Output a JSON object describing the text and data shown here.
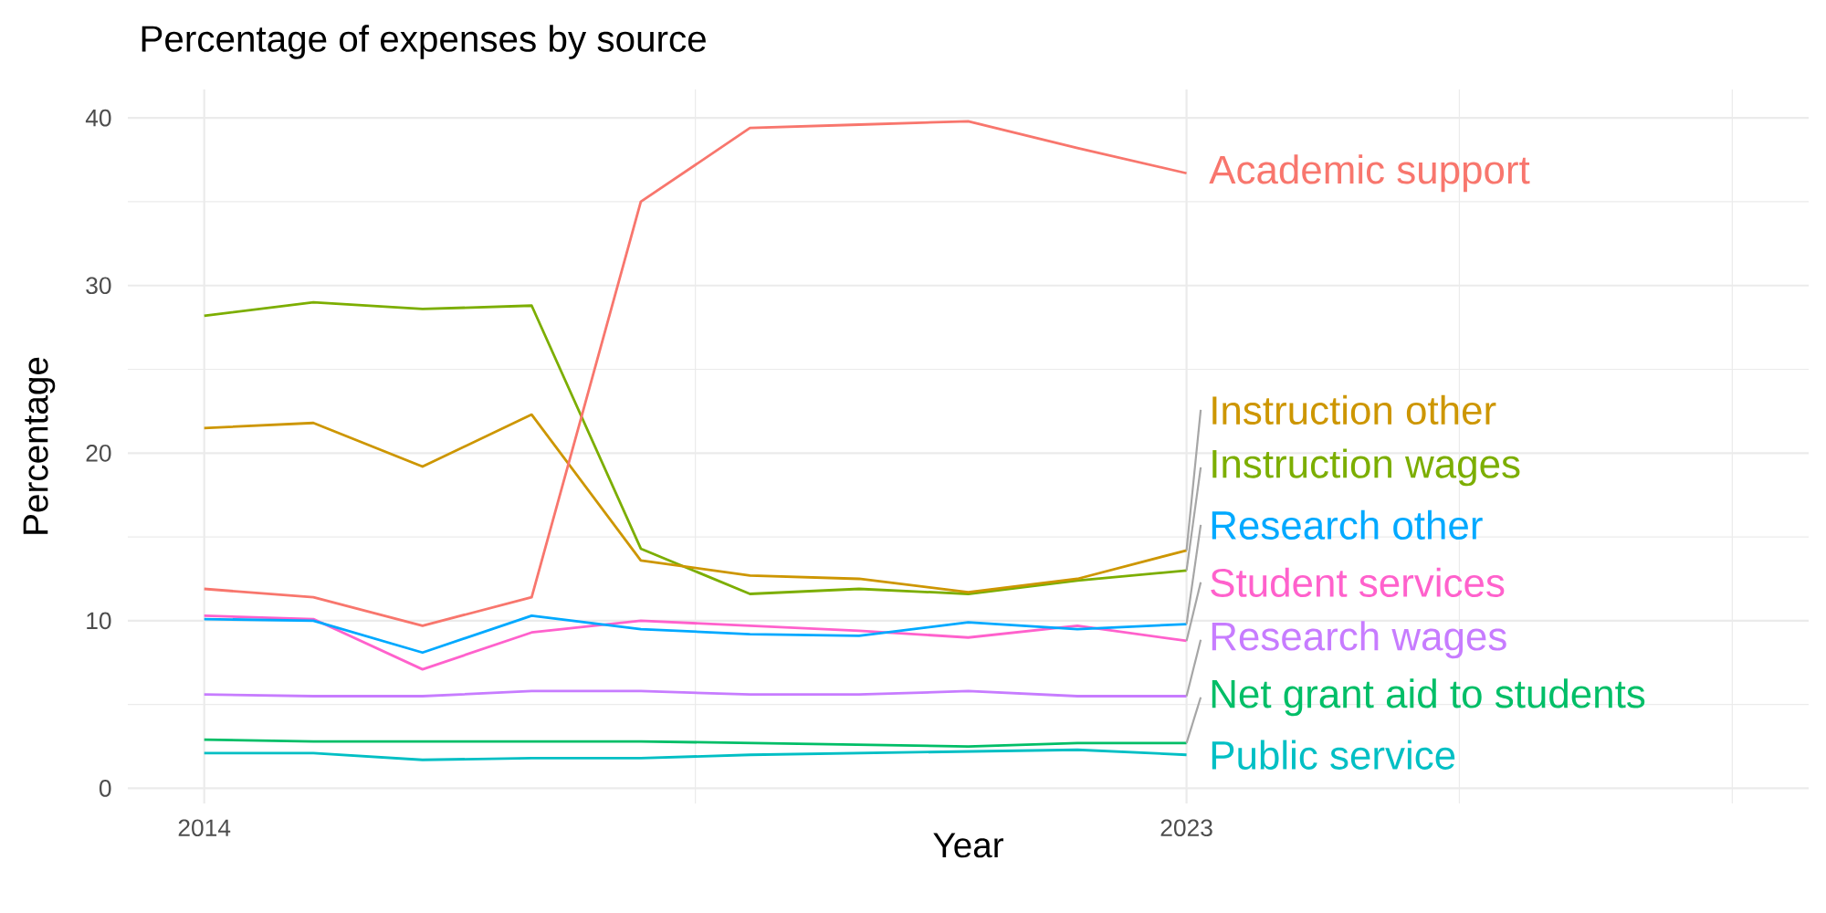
{
  "chart_data": {
    "type": "line",
    "title": "Percentage of expenses by source",
    "xlabel": "Year",
    "ylabel": "Percentage",
    "x": [
      2014,
      2015,
      2016,
      2017,
      2018,
      2019,
      2020,
      2021,
      2022,
      2023
    ],
    "xlim": [
      2013.3,
      2028.7
    ],
    "xticks": [
      2014,
      2023,
      {
        "value": 2018.5,
        "label": null
      },
      {
        "value": 2025.5,
        "label": null
      },
      {
        "value": 2028,
        "label": null
      }
    ],
    "ylim": [
      -0.9,
      41.7
    ],
    "yticks": [
      0,
      10,
      20,
      30,
      40,
      {
        "value": 5,
        "label": null
      },
      {
        "value": 15,
        "label": null
      },
      {
        "value": 25,
        "label": null
      },
      {
        "value": 35,
        "label": null
      }
    ],
    "grid": true,
    "series": [
      {
        "name": "Academic support",
        "color": "#F8766D",
        "values": [
          11.9,
          11.4,
          9.7,
          11.4,
          35.0,
          39.4,
          39.6,
          39.8,
          38.2,
          36.7
        ]
      },
      {
        "name": "Instruction other",
        "color": "#CD9600",
        "values": [
          21.5,
          21.8,
          19.2,
          22.3,
          13.6,
          12.7,
          12.5,
          11.7,
          12.5,
          14.2
        ]
      },
      {
        "name": "Instruction wages",
        "color": "#7CAE00",
        "values": [
          28.2,
          29.0,
          28.6,
          28.8,
          14.3,
          11.6,
          11.9,
          11.6,
          12.4,
          13.0
        ]
      },
      {
        "name": "Net grant aid to students",
        "color": "#00BE67",
        "values": [
          2.9,
          2.8,
          2.8,
          2.8,
          2.8,
          2.7,
          2.6,
          2.5,
          2.7,
          2.7
        ]
      },
      {
        "name": "Public service",
        "color": "#00BFC4",
        "values": [
          2.1,
          2.1,
          1.7,
          1.8,
          1.8,
          2.0,
          2.1,
          2.2,
          2.3,
          2.0
        ]
      },
      {
        "name": "Research other",
        "color": "#00A9FF",
        "values": [
          10.1,
          10.0,
          8.1,
          10.3,
          9.5,
          9.2,
          9.1,
          9.9,
          9.5,
          9.8
        ]
      },
      {
        "name": "Research wages",
        "color": "#C77CFF",
        "values": [
          5.6,
          5.5,
          5.5,
          5.8,
          5.8,
          5.6,
          5.6,
          5.8,
          5.5,
          5.5
        ]
      },
      {
        "name": "Student services",
        "color": "#FF61CC",
        "values": [
          10.3,
          10.1,
          7.1,
          9.3,
          10.0,
          9.7,
          9.4,
          9.0,
          9.7,
          8.8
        ]
      }
    ]
  }
}
